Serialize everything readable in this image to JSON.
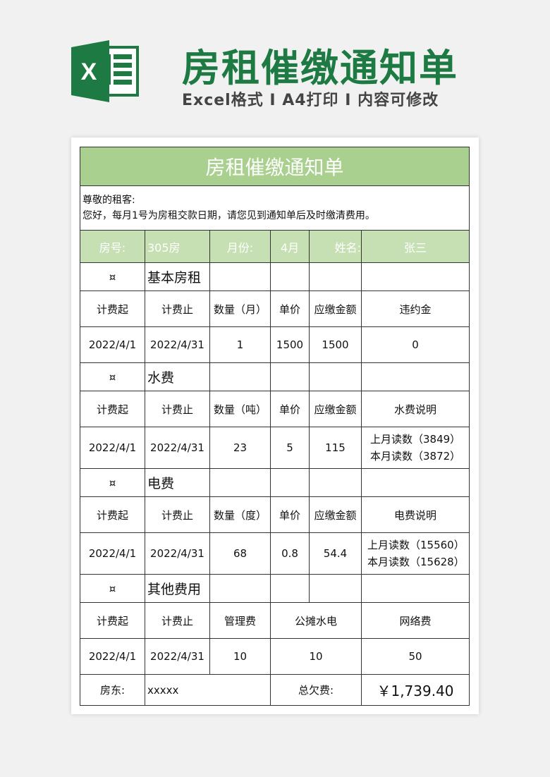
{
  "banner": {
    "title": "房租催缴通知单",
    "subtitle": "Excel格式 I A4打印 I 内容可修改",
    "logo_letter": "X"
  },
  "form": {
    "title": "房租催缴通知单",
    "greeting": "尊敬的租客:",
    "message": "您好，每月1号为房租交款日期，请您见到通知单后及时缴清费用。",
    "info": {
      "room_label": "房号:",
      "room": "305房",
      "month_label": "月份:",
      "month": "4月",
      "name_label": "姓名:",
      "name": "张三"
    },
    "mark": "¤",
    "rent": {
      "title": "基本房租",
      "headers": [
        "计费起",
        "计费止",
        "数量（月）",
        "单价",
        "应缴金额",
        "违约金"
      ],
      "row": [
        "2022/4/1",
        "2022/4/31",
        "1",
        "1500",
        "1500",
        "0"
      ]
    },
    "water": {
      "title": "水费",
      "headers": [
        "计费起",
        "计费止",
        "数量（吨）",
        "单价",
        "应缴金额",
        "水费说明"
      ],
      "row": [
        "2022/4/1",
        "2022/4/31",
        "23",
        "5",
        "115"
      ],
      "note1": "上月读数（3849）",
      "note2": "本月读数（3872）"
    },
    "power": {
      "title": "电费",
      "headers": [
        "计费起",
        "计费止",
        "数量（度）",
        "单价",
        "应缴金额",
        "电费说明"
      ],
      "row": [
        "2022/4/1",
        "2022/4/31",
        "68",
        "0.8",
        "54.4"
      ],
      "note1": "上月读数（15560）",
      "note2": "本月读数（15628）"
    },
    "other": {
      "title": "其他费用",
      "headers": [
        "计费起",
        "计费止",
        "管理费",
        "公摊水电",
        "网络费"
      ],
      "row": [
        "2022/4/1",
        "2022/4/31",
        "10",
        "10",
        "50"
      ]
    },
    "footer": {
      "landlord_label": "房东:",
      "landlord": "xxxxx",
      "total_label": "总欠费:",
      "total": "￥1,739.40"
    }
  },
  "colors": {
    "brand": "#1e7a43",
    "header_green": "#a9d08e",
    "info_green": "#c6e0b4"
  }
}
